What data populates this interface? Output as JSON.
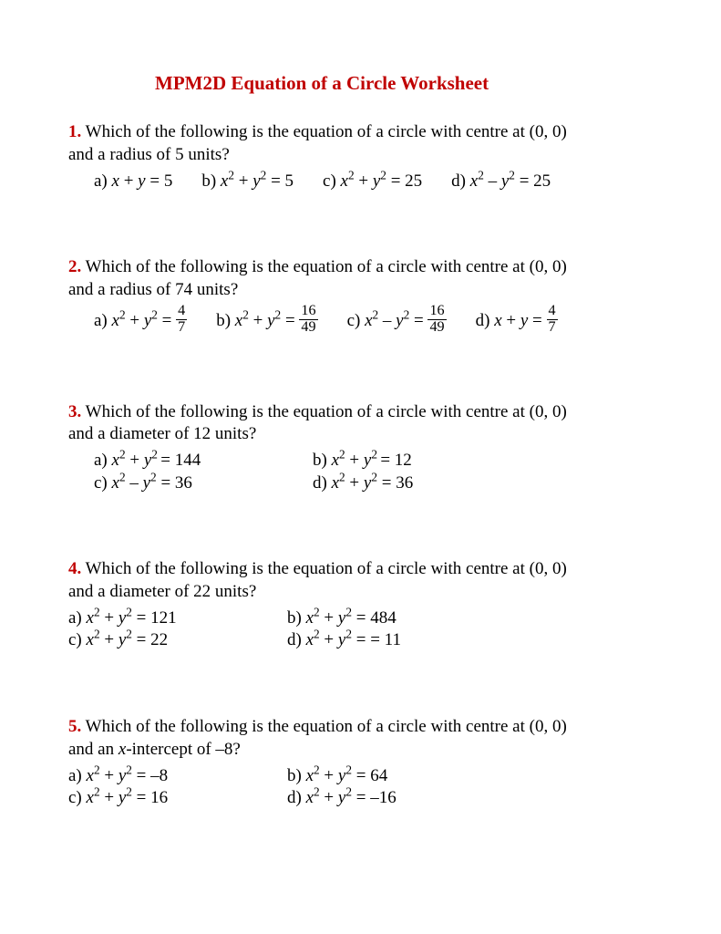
{
  "colors": {
    "accent": "#c00000",
    "text": "#000000",
    "background": "#ffffff"
  },
  "typography": {
    "font_family": "Times New Roman",
    "body_fontsize_pt": 14,
    "title_fontsize_pt": 16,
    "title_weight": "bold"
  },
  "title": "MPM2D Equation of a Circle Worksheet",
  "questions": [
    {
      "number": "1.",
      "text_line1": "Which of the following is the equation of a circle with centre at (0, 0)",
      "text_line2": "and a radius of 5 units?",
      "layout": "one-line",
      "indent": true,
      "options": {
        "a": {
          "lhs": "x + y",
          "op": "=",
          "rhs": "5"
        },
        "b": {
          "lhs": "x² + y²",
          "op": "=",
          "rhs": "5"
        },
        "c": {
          "lhs": "x² + y²",
          "op": "=",
          "rhs": "25"
        },
        "d": {
          "lhs": "x² – y²",
          "op": "=",
          "rhs": "25"
        }
      }
    },
    {
      "number": "2.",
      "text_line1": "Which of the following is the equation of a circle with centre at (0, 0)",
      "text_line2": "and a radius of 74 units?",
      "layout": "one-line",
      "indent": true,
      "options": {
        "a": {
          "lhs": "x² + y²",
          "op": "=",
          "rhs_frac": {
            "num": "4",
            "den": "7"
          }
        },
        "b": {
          "lhs": "x² + y²",
          "op": "=",
          "rhs_frac": {
            "num": "16",
            "den": "49"
          }
        },
        "c": {
          "lhs": "x² – y²",
          "op": "=",
          "rhs_frac": {
            "num": "16",
            "den": "49"
          }
        },
        "d": {
          "lhs": "x + y",
          "op": "=",
          "rhs_frac": {
            "num": "4",
            "den": "7"
          }
        }
      }
    },
    {
      "number": "3.",
      "text_line1": "Which of the following is the equation of a circle with centre at (0, 0)",
      "text_line2": "and a diameter of 12 units?",
      "layout": "two-col",
      "indent": true,
      "options": {
        "a": {
          "lhs": "x² + y²",
          "op": "=",
          "rhs": "144"
        },
        "b": {
          "lhs": "x² + y²",
          "op": "=",
          "rhs": "12"
        },
        "c": {
          "lhs": "x² – y²",
          "op": "=",
          "rhs": "36"
        },
        "d": {
          "lhs": "x² + y²",
          "op": "=",
          "rhs": "36"
        }
      }
    },
    {
      "number": "4.",
      "text_line1": "Which of the following is the equation of a circle with centre at (0, 0)",
      "text_line2": "and a diameter of 22 units?",
      "layout": "two-col",
      "indent": false,
      "options": {
        "a": {
          "lhs": "x² + y²",
          "op": "=",
          "rhs": "121"
        },
        "b": {
          "lhs": "x² + y²",
          "op": "=",
          "rhs": "484"
        },
        "c": {
          "lhs": "x² + y²",
          "op": "=",
          "rhs": "22"
        },
        "d": {
          "lhs": "x² + y²",
          "op": "= =",
          "rhs": "11"
        }
      }
    },
    {
      "number": "5.",
      "text_line1": "Which of the following is the equation of a circle with centre at (0, 0)",
      "text_line2_html": "and an <span class='var'>x</span>-intercept of –8?",
      "layout": "two-col",
      "indent": false,
      "options": {
        "a": {
          "lhs": "x² + y²",
          "op": "=",
          "rhs": "–8"
        },
        "b": {
          "lhs": "x² + y²",
          "op": "=",
          "rhs": "64"
        },
        "c": {
          "lhs": "x² + y²",
          "op": "=",
          "rhs": "16"
        },
        "d": {
          "lhs": "x² + y²",
          "op": "=",
          "rhs": "–16"
        }
      }
    }
  ]
}
